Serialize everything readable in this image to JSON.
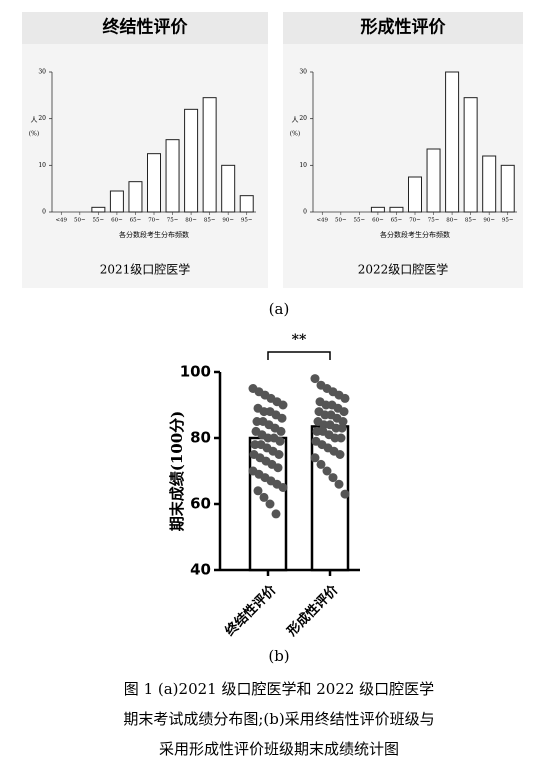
{
  "chart_data": [
    {
      "type": "bar",
      "title": "终结性评价",
      "ylabel": [
        "人",
        "(%)"
      ],
      "xlabel": "各分数段考生分布频数",
      "footer": "2021级口腔医学",
      "categories": [
        "<49",
        "50~",
        "55~",
        "60~",
        "65~",
        "70~",
        "75~",
        "80~",
        "85~",
        "90~",
        "95~"
      ],
      "values": [
        0,
        0,
        1,
        4.5,
        6.5,
        12.5,
        15.5,
        22,
        24.5,
        10,
        3.5
      ],
      "ylim": [
        0,
        30
      ],
      "yticks": [
        0,
        10,
        20,
        30
      ],
      "color": "#ffffff"
    },
    {
      "type": "bar",
      "title": "形成性评价",
      "ylabel": [
        "人",
        "(%)"
      ],
      "xlabel": "各分数段考生分布频数",
      "footer": "2022级口腔医学",
      "categories": [
        "<49",
        "50~",
        "55~",
        "60~",
        "65~",
        "70~",
        "75~",
        "80~",
        "85~",
        "90~",
        "95~"
      ],
      "values": [
        0,
        0,
        0,
        1,
        1,
        7.5,
        13.5,
        30,
        24.5,
        12,
        10
      ],
      "ylim": [
        0,
        30
      ],
      "yticks": [
        0,
        10,
        20,
        30
      ],
      "color": "#ffffff"
    },
    {
      "type": "bar",
      "ylabel": "期末成绩(100分)",
      "categories": [
        "终结性评价",
        "形成性评价"
      ],
      "values": [
        80,
        83.5
      ],
      "points": [
        [
          95,
          94,
          93,
          92,
          91,
          90,
          89,
          88,
          88,
          87,
          86,
          85,
          85,
          84,
          83,
          82,
          82,
          81,
          80,
          80,
          79,
          78,
          78,
          77,
          76,
          75,
          75,
          74,
          73,
          72,
          71,
          70,
          69,
          68,
          67,
          66,
          65,
          64,
          62,
          60,
          57
        ],
        [
          98,
          96,
          95,
          94,
          93,
          92,
          91,
          90,
          90,
          89,
          88,
          88,
          87,
          87,
          86,
          85,
          85,
          84,
          84,
          83,
          83,
          82,
          82,
          81,
          80,
          80,
          79,
          78,
          77,
          76,
          75,
          74,
          72,
          70,
          68,
          66,
          63
        ]
      ],
      "annotation": "**",
      "ylim": [
        40,
        100
      ],
      "yticks": [
        40,
        60,
        80,
        100
      ],
      "color": "#ffffff",
      "point_color": "#555555"
    }
  ],
  "panel_a_label": "(a)",
  "panel_b_label": "(b)",
  "caption": [
    "图 1 (a)2021 级口腔医学和 2022 级口腔医学",
    "期末考试成绩分布图;(b)采用终结性评价班级与",
    "采用形成性评价班级期末成绩统计图"
  ]
}
